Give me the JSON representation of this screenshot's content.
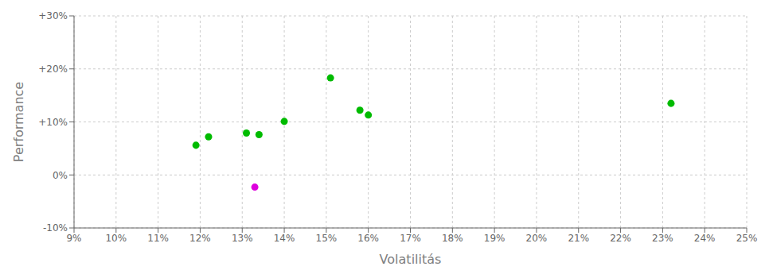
{
  "chart_data": {
    "type": "scatter",
    "xlabel": "Volatilitás",
    "ylabel": "Performance",
    "xlim": [
      0.09,
      0.25
    ],
    "ylim": [
      -0.1,
      0.3
    ],
    "xticks": [
      {
        "value": 0.09,
        "label": "9%"
      },
      {
        "value": 0.1,
        "label": "10%"
      },
      {
        "value": 0.11,
        "label": "11%"
      },
      {
        "value": 0.12,
        "label": "12%"
      },
      {
        "value": 0.13,
        "label": "13%"
      },
      {
        "value": 0.14,
        "label": "14%"
      },
      {
        "value": 0.15,
        "label": "15%"
      },
      {
        "value": 0.16,
        "label": "16%"
      },
      {
        "value": 0.17,
        "label": "17%"
      },
      {
        "value": 0.18,
        "label": "18%"
      },
      {
        "value": 0.19,
        "label": "19%"
      },
      {
        "value": 0.2,
        "label": "20%"
      },
      {
        "value": 0.21,
        "label": "21%"
      },
      {
        "value": 0.22,
        "label": "22%"
      },
      {
        "value": 0.23,
        "label": "23%"
      },
      {
        "value": 0.24,
        "label": "24%"
      },
      {
        "value": 0.25,
        "label": "25%"
      }
    ],
    "yticks": [
      {
        "value": -0.1,
        "label": "-10%"
      },
      {
        "value": 0.0,
        "label": "0%"
      },
      {
        "value": 0.1,
        "label": "+10%"
      },
      {
        "value": 0.2,
        "label": "+20%"
      },
      {
        "value": 0.3,
        "label": "+30%"
      }
    ],
    "grid": true,
    "series": [
      {
        "color": "#00bb00",
        "x": [
          0.119,
          0.122,
          0.131,
          0.134,
          0.14,
          0.151,
          0.158,
          0.16,
          0.232
        ],
        "values": [
          0.056,
          0.072,
          0.079,
          0.076,
          0.101,
          0.183,
          0.122,
          0.113,
          0.135
        ]
      },
      {
        "color": "#dd00dd",
        "x": [
          0.133
        ],
        "values": [
          -0.023
        ]
      }
    ]
  }
}
